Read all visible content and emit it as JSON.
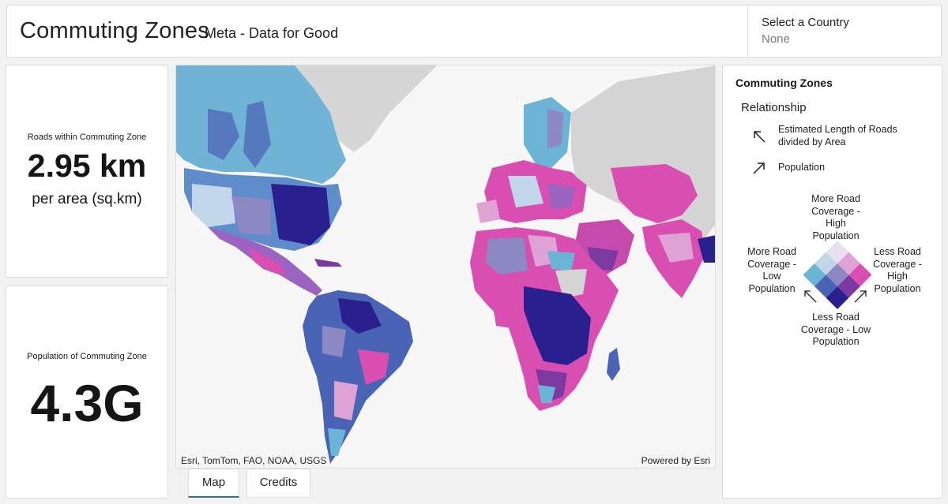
{
  "header": {
    "title": "Commuting Zones",
    "subtitle": "Meta - Data for Good",
    "country_label": "Select a Country",
    "country_value": "None"
  },
  "indicators": {
    "roads": {
      "label": "Roads within Commuting Zone",
      "value": "2.95 km",
      "unit": "per area (sq.km)"
    },
    "population": {
      "label": "Population of Commuting Zone",
      "value": "4.3G"
    }
  },
  "map": {
    "attribution": "Esri, TomTom, FAO, NOAA, USGS",
    "powered_by": "Powered by Esri"
  },
  "tabs": [
    {
      "label": "Map",
      "active": true
    },
    {
      "label": "Credits",
      "active": false
    }
  ],
  "legend": {
    "title": "Commuting Zones",
    "relationship_label": "Relationship",
    "items": [
      {
        "icon": "arrow-up-left-icon",
        "text": "Estimated Length of Roads divided by Area"
      },
      {
        "icon": "arrow-up-right-icon",
        "text": "Population"
      }
    ],
    "corners": {
      "top": "More Road Coverage - High Population",
      "left": "More Road Coverage - Low Population",
      "right": "Less Road Coverage - High Population",
      "bottom": "Less Road Coverage - Low Population"
    },
    "grid_colors": [
      "#e9e1ef",
      "#dea3d4",
      "#d94fb1",
      "#c2d6ea",
      "#8b88c3",
      "#7c3aa0",
      "#6bb4d6",
      "#4a64b5",
      "#2a1f8f"
    ]
  },
  "colors": {
    "accent": "#2d6ea5",
    "ocean": "#f7f7f7",
    "no_data": "#d4d4d4"
  }
}
